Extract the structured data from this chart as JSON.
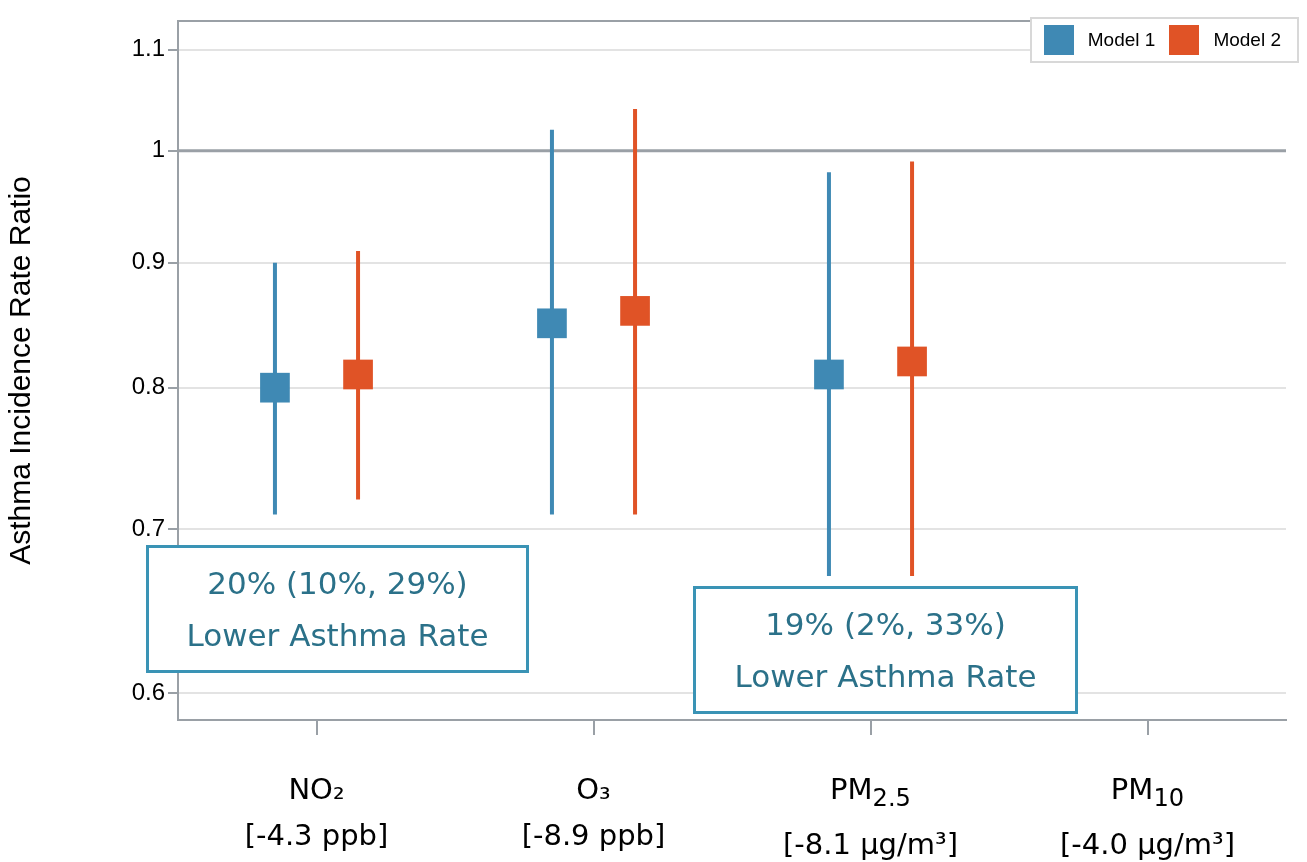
{
  "chart_data": {
    "type": "scatter",
    "ylabel": "Asthma Incidence Rate Ratio",
    "categories": [
      "NO₂\n[-4.3 ppb]",
      "O₃\n[-8.9 ppb]",
      "PM$_{2.5}$\n[-8.1 μg/m³]",
      "PM$_{10}$\n[-4.0 μg/m³]"
    ],
    "series": [
      {
        "name": "Model 1",
        "color": "#3f89b4",
        "values": [
          0.8,
          0.85,
          0.81,
          null
        ],
        "errors": [
          [
            0.71,
            0.9
          ],
          [
            0.71,
            1.02
          ],
          [
            0.67,
            0.98
          ],
          null
        ]
      },
      {
        "name": "Model 2",
        "color": "#e05326",
        "values": [
          0.81,
          0.86,
          0.82,
          null
        ],
        "errors": [
          [
            0.72,
            0.91
          ],
          [
            0.71,
            1.04
          ],
          [
            0.67,
            0.99
          ],
          null
        ]
      }
    ],
    "log": true,
    "ylim": [
      0.585,
      1.13
    ],
    "yticks": [
      0.6,
      0.7,
      0.8,
      0.9,
      1,
      1.1
    ],
    "grid": "y",
    "marker": "square",
    "legend": "top right",
    "ref_lines": [
      {
        "axis": "y",
        "value": 1,
        "color": "#9aa0a6"
      }
    ],
    "annotations": [
      "20% (10%, 29%)\nLower Asthma Rate",
      "19% (2%, 33%)\nLower Asthma Rate"
    ]
  }
}
